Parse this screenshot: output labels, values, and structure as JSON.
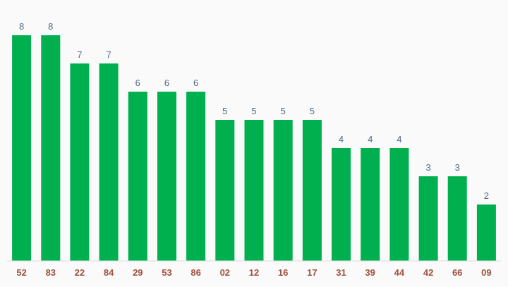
{
  "colors": {
    "background": "#fafafa",
    "bar": "#00b04f",
    "value_label": "#4f6b80",
    "category_label": "#a0523d",
    "baseline": "#dcdcdc"
  },
  "chart_data": {
    "type": "bar",
    "categories": [
      "52",
      "83",
      "22",
      "84",
      "29",
      "53",
      "86",
      "02",
      "12",
      "16",
      "17",
      "31",
      "39",
      "44",
      "42",
      "66",
      "09"
    ],
    "values": [
      8,
      8,
      7,
      7,
      6,
      6,
      6,
      5,
      5,
      5,
      5,
      4,
      4,
      4,
      3,
      3,
      2
    ],
    "title": "",
    "xlabel": "",
    "ylabel": "",
    "ylim": [
      0,
      8
    ],
    "grid": false,
    "legend": "none",
    "data_labels": true
  }
}
